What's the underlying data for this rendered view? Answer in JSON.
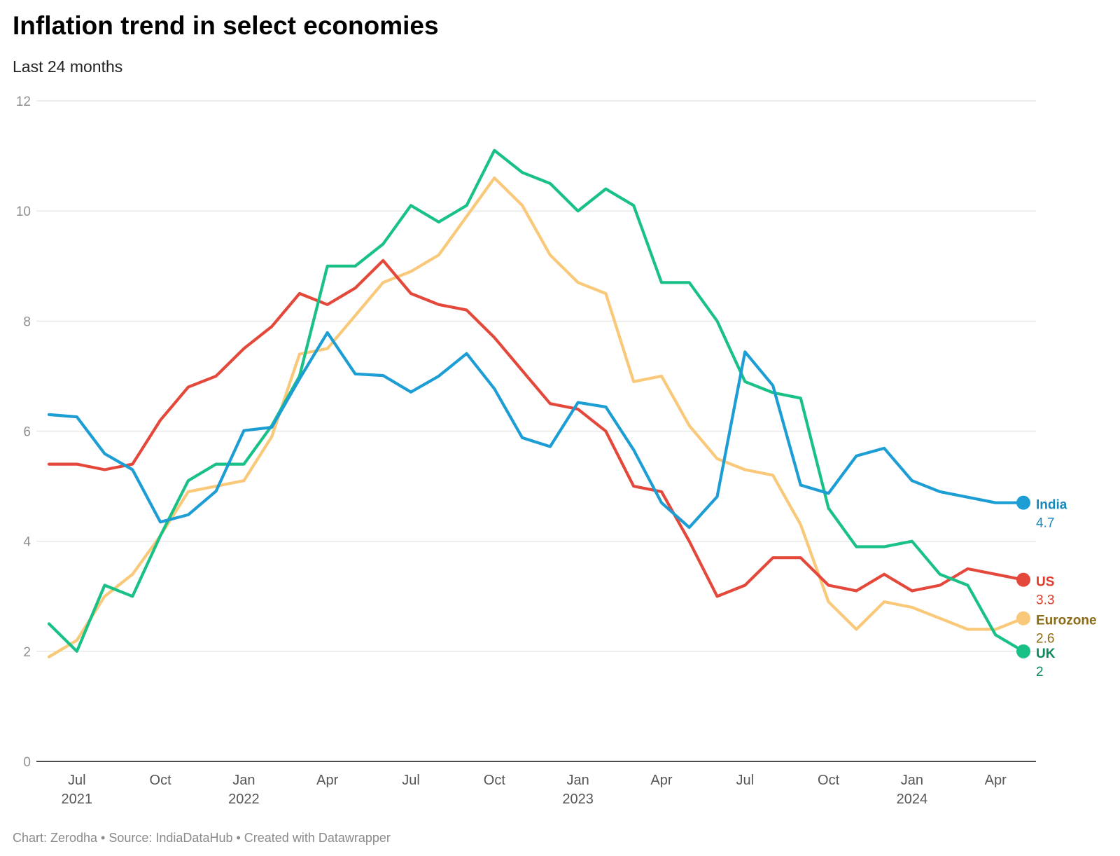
{
  "header": {
    "title": "Inflation trend in select economies",
    "subtitle": "Last 24 months"
  },
  "footer": {
    "credit": "Chart: Zerodha • Source: IndiaDataHub • Created with Datawrapper"
  },
  "chart_data": {
    "type": "line",
    "title": "Inflation trend in select economies",
    "subtitle": "Last 24 months",
    "xlabel": "",
    "ylabel": "",
    "ylim": [
      0,
      12
    ],
    "yticks": [
      0,
      2,
      4,
      6,
      8,
      10,
      12
    ],
    "grid": true,
    "legend": "direct labels at line ends (right)",
    "x": [
      "2021-06",
      "2021-07",
      "2021-08",
      "2021-09",
      "2021-10",
      "2021-11",
      "2021-12",
      "2022-01",
      "2022-02",
      "2022-03",
      "2022-04",
      "2022-05",
      "2022-06",
      "2022-07",
      "2022-08",
      "2022-09",
      "2022-10",
      "2022-11",
      "2022-12",
      "2023-01",
      "2023-02",
      "2023-03",
      "2023-04",
      "2023-05",
      "2023-06",
      "2023-07",
      "2023-08",
      "2023-09",
      "2023-10",
      "2023-11",
      "2023-12",
      "2024-01",
      "2024-02",
      "2024-03",
      "2024-04",
      "2024-05"
    ],
    "xticks": [
      {
        "x": "2021-07",
        "label": "Jul",
        "year": "2021"
      },
      {
        "x": "2021-10",
        "label": "Oct",
        "year": ""
      },
      {
        "x": "2022-01",
        "label": "Jan",
        "year": "2022"
      },
      {
        "x": "2022-04",
        "label": "Apr",
        "year": ""
      },
      {
        "x": "2022-07",
        "label": "Jul",
        "year": ""
      },
      {
        "x": "2022-10",
        "label": "Oct",
        "year": ""
      },
      {
        "x": "2023-01",
        "label": "Jan",
        "year": "2023"
      },
      {
        "x": "2023-04",
        "label": "Apr",
        "year": ""
      },
      {
        "x": "2023-07",
        "label": "Jul",
        "year": ""
      },
      {
        "x": "2023-10",
        "label": "Oct",
        "year": ""
      },
      {
        "x": "2024-01",
        "label": "Jan",
        "year": "2024"
      },
      {
        "x": "2024-04",
        "label": "Apr",
        "year": ""
      }
    ],
    "series": [
      {
        "name": "Eurozone",
        "color": "#f9c879",
        "label_color": "#8a6a14",
        "end_value": "2.6",
        "values": [
          1.9,
          2.2,
          3.0,
          3.4,
          4.1,
          4.9,
          5.0,
          5.1,
          5.9,
          7.4,
          7.5,
          8.1,
          8.7,
          8.9,
          9.2,
          9.9,
          10.6,
          10.1,
          9.2,
          8.7,
          8.5,
          6.9,
          7.0,
          6.1,
          5.5,
          5.3,
          5.2,
          4.3,
          2.9,
          2.4,
          2.9,
          2.8,
          2.6,
          2.4,
          2.4,
          2.6
        ]
      },
      {
        "name": "US",
        "color": "#e3483a",
        "label_color": "#e03a2c",
        "end_value": "3.3",
        "values": [
          5.4,
          5.4,
          5.3,
          5.4,
          6.2,
          6.8,
          7.0,
          7.5,
          7.9,
          8.5,
          8.3,
          8.6,
          9.1,
          8.5,
          8.3,
          8.2,
          7.7,
          7.1,
          6.5,
          6.4,
          6.0,
          5.0,
          4.9,
          4.0,
          3.0,
          3.2,
          3.7,
          3.7,
          3.2,
          3.1,
          3.4,
          3.1,
          3.2,
          3.5,
          3.4,
          3.3
        ]
      },
      {
        "name": "UK",
        "color": "#19c186",
        "label_color": "#0b8a5c",
        "end_value": "2",
        "values": [
          2.5,
          2.0,
          3.2,
          3.0,
          4.1,
          5.1,
          5.4,
          5.4,
          6.1,
          7.0,
          9.0,
          9.0,
          9.4,
          10.1,
          9.8,
          10.1,
          11.1,
          10.7,
          10.5,
          10.0,
          10.4,
          10.1,
          8.7,
          8.7,
          8.0,
          6.9,
          6.7,
          6.6,
          4.6,
          3.9,
          3.9,
          4.0,
          3.4,
          3.2,
          2.3,
          2.0
        ]
      },
      {
        "name": "India",
        "color": "#1c9dd4",
        "label_color": "#1789bd",
        "end_value": "4.7",
        "values": [
          6.3,
          6.26,
          5.59,
          5.3,
          4.35,
          4.48,
          4.91,
          6.01,
          6.07,
          6.95,
          7.79,
          7.04,
          7.01,
          6.71,
          7.0,
          7.41,
          6.77,
          5.88,
          5.72,
          6.52,
          6.44,
          5.66,
          4.7,
          4.25,
          4.81,
          7.44,
          6.83,
          5.02,
          4.87,
          5.55,
          5.69,
          5.1,
          4.9,
          4.8,
          4.7,
          4.7
        ]
      }
    ]
  }
}
